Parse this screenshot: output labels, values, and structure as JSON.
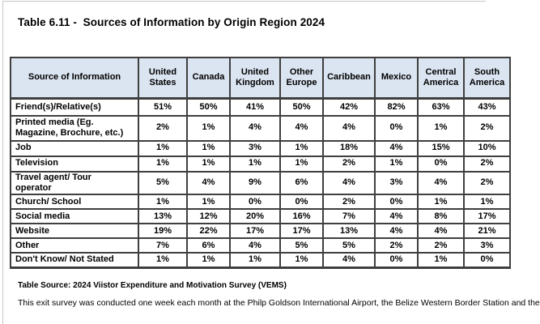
{
  "page": {
    "title": "Table 6.11 -  Sources of Information by Origin Region 2024",
    "source_note": "Table Source: 2024 Viistor Expenditure and Motivation Survey (VEMS)",
    "description_note": "This exit survey was conducted one week each month at the Philp Goldson International Airport, the Belize Western Border Station and the"
  },
  "table": {
    "columns": [
      "Source of Information",
      "United\nStates",
      "Canada",
      "United\nKingdom",
      "Other\nEurope",
      "Caribbean",
      "Mexico",
      "Central\nAmerica",
      "South\nAmerica"
    ],
    "rows": [
      {
        "label": "Friend(s)/Relative(s)",
        "values": [
          "51%",
          "50%",
          "41%",
          "50%",
          "42%",
          "82%",
          "63%",
          "43%"
        ]
      },
      {
        "label": "Printed media (Eg.\nMagazine, Brochure, etc.)",
        "values": [
          "2%",
          "1%",
          "4%",
          "4%",
          "4%",
          "0%",
          "1%",
          "2%"
        ]
      },
      {
        "label": "Job",
        "values": [
          "1%",
          "1%",
          "3%",
          "1%",
          "18%",
          "4%",
          "15%",
          "10%"
        ]
      },
      {
        "label": "Television",
        "values": [
          "1%",
          "1%",
          "1%",
          "1%",
          "2%",
          "1%",
          "0%",
          "2%"
        ]
      },
      {
        "label": "Travel agent/ Tour\noperator",
        "values": [
          "5%",
          "4%",
          "9%",
          "6%",
          "4%",
          "3%",
          "4%",
          "2%"
        ]
      },
      {
        "label": "Church/ School",
        "values": [
          "1%",
          "1%",
          "0%",
          "0%",
          "2%",
          "0%",
          "1%",
          "1%"
        ]
      },
      {
        "label": "Social media",
        "values": [
          "13%",
          "12%",
          "20%",
          "16%",
          "7%",
          "4%",
          "8%",
          "17%"
        ]
      },
      {
        "label": "Website",
        "values": [
          "19%",
          "22%",
          "17%",
          "17%",
          "13%",
          "4%",
          "4%",
          "21%"
        ]
      },
      {
        "label": "Other",
        "values": [
          "7%",
          "6%",
          "4%",
          "5%",
          "5%",
          "2%",
          "2%",
          "3%"
        ]
      },
      {
        "label": "Don't Know/ Not Stated",
        "values": [
          "1%",
          "1%",
          "1%",
          "1%",
          "4%",
          "0%",
          "1%",
          "0%"
        ]
      }
    ]
  },
  "colors": {
    "header_bg": "#dbe5f1",
    "grid_line": "#3f3f3f",
    "text": "#000000",
    "page_edge": "#c6c6c6"
  }
}
